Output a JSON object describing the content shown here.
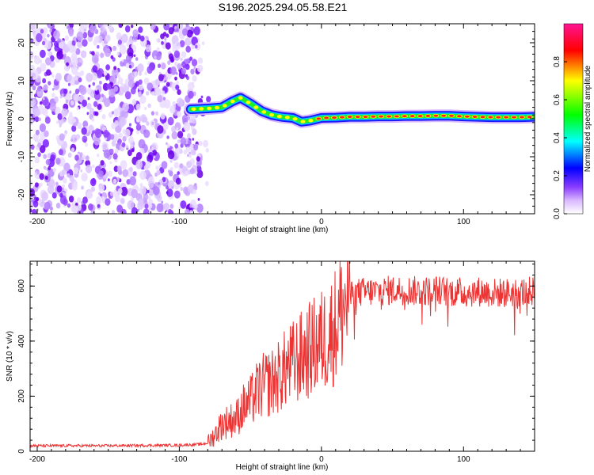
{
  "title": "S196.2025.294.05.58.E21",
  "chart_data": [
    {
      "type": "heatmap",
      "name": "spectrogram",
      "xlabel": "Height of straight line (km)",
      "ylabel": "Frequency (Hz)",
      "xlim": [
        -205,
        150
      ],
      "ylim": [
        -25,
        25
      ],
      "xticks": [
        -200,
        -100,
        0,
        100
      ],
      "xtick_labels": [
        "-200",
        "-100",
        "0",
        "100"
      ],
      "yticks": [
        -20,
        -10,
        0,
        10,
        20
      ],
      "ytick_labels": [
        "-20",
        "-10",
        "0",
        "10",
        "20"
      ],
      "noise_region_x": [
        -205,
        -85
      ],
      "track": {
        "x": [
          -92,
          -80,
          -70,
          -63,
          -57,
          -50,
          -42,
          -35,
          -28,
          -20,
          -14,
          -8,
          0,
          10,
          20,
          30,
          40,
          50,
          60,
          70,
          80,
          90,
          100,
          110,
          120,
          130,
          140,
          150
        ],
        "y": [
          2.5,
          2.7,
          3.0,
          4.5,
          5.5,
          4.0,
          2.0,
          1.0,
          0.5,
          0.2,
          -0.8,
          -0.5,
          0.2,
          0.3,
          0.5,
          0.5,
          0.6,
          0.6,
          0.7,
          0.7,
          0.8,
          0.8,
          0.6,
          0.5,
          0.4,
          0.4,
          0.4,
          0.5
        ]
      },
      "colorbar": {
        "label": "Normalized spectral amplitude",
        "range": [
          0.0,
          1.0
        ],
        "ticks": [
          0.0,
          0.2,
          0.4,
          0.6,
          0.8
        ],
        "tick_labels": [
          "0.0",
          "0.2",
          "0.4",
          "0.6",
          "0.8"
        ],
        "colors": [
          "#ffffff",
          "#9b4dff",
          "#0000ff",
          "#00ffff",
          "#00ff00",
          "#ffff00",
          "#ff0000",
          "#ff1493"
        ]
      }
    },
    {
      "type": "line",
      "name": "snr",
      "xlabel": "Height of straight line (km)",
      "ylabel": "SNR (10 * v/v)",
      "xlim": [
        -205,
        150
      ],
      "ylim": [
        0,
        690
      ],
      "xticks": [
        -200,
        -100,
        0,
        100
      ],
      "xtick_labels": [
        "-200",
        "-100",
        "0",
        "100"
      ],
      "yticks": [
        0,
        200,
        400,
        600
      ],
      "ytick_labels": [
        "0",
        "200",
        "400",
        "600"
      ],
      "color": "#ee3333",
      "series": [
        {
          "name": "SNR",
          "x": [
            -205,
            -150,
            -100,
            -85,
            -80,
            -75,
            -70,
            -65,
            -60,
            -55,
            -50,
            -45,
            -40,
            -35,
            -30,
            -25,
            -20,
            -15,
            -10,
            -5,
            0,
            5,
            10,
            15,
            18,
            22,
            25,
            30,
            40,
            50,
            60,
            70,
            80,
            90,
            100,
            110,
            120,
            130,
            140,
            150
          ],
          "y": [
            20,
            20,
            22,
            25,
            30,
            60,
            100,
            110,
            120,
            160,
            180,
            220,
            240,
            250,
            270,
            300,
            320,
            340,
            360,
            380,
            400,
            420,
            460,
            520,
            550,
            570,
            575,
            578,
            580,
            585,
            585,
            580,
            585,
            580,
            575,
            580,
            575,
            575,
            578,
            580
          ]
        }
      ]
    }
  ]
}
